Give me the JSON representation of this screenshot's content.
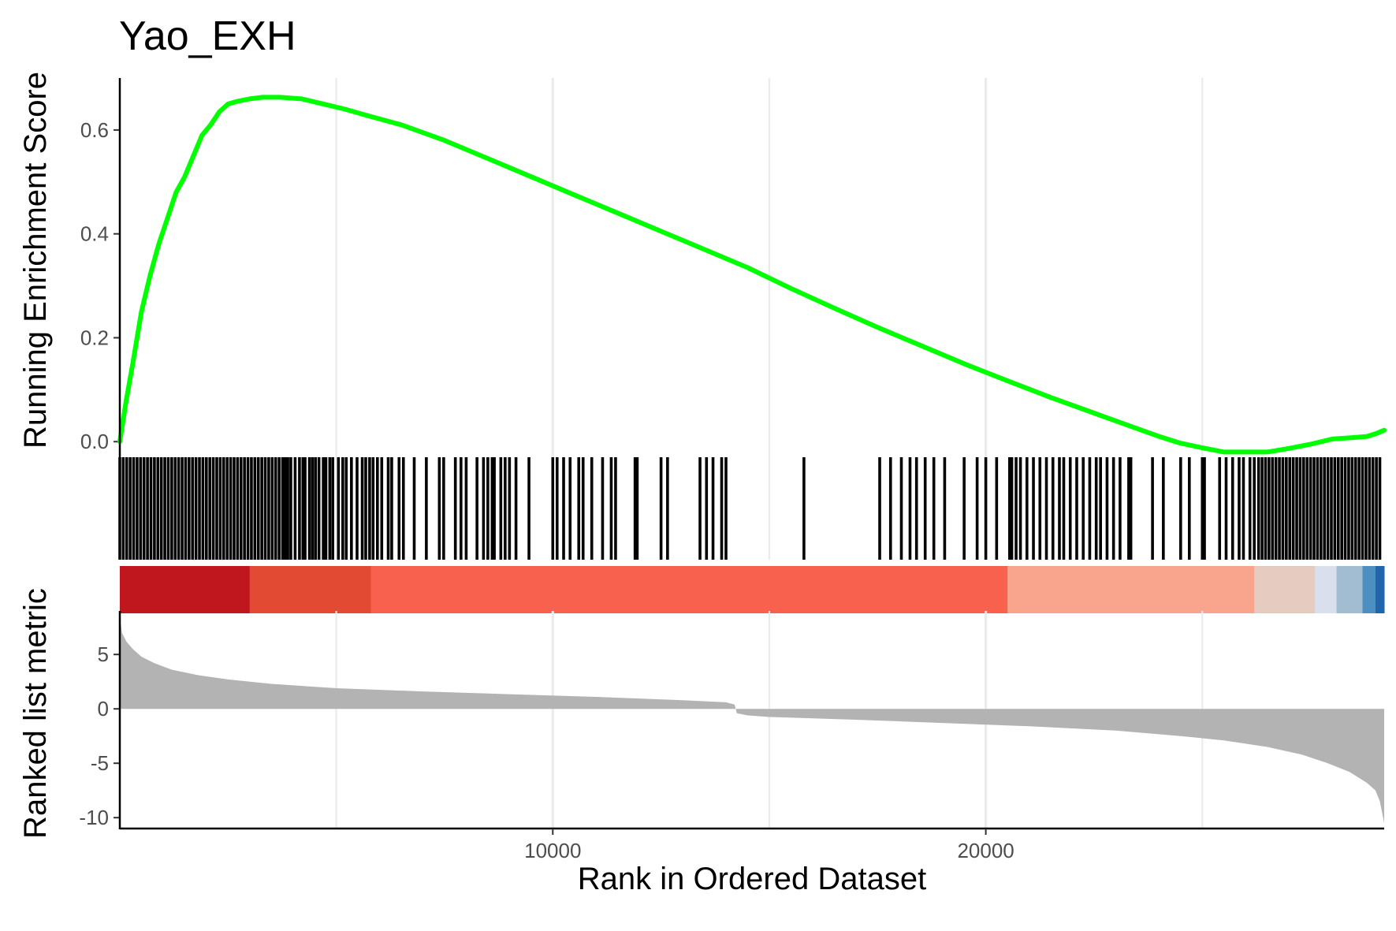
{
  "chart_data": {
    "type": "line",
    "title": "Yao_EXH",
    "xlabel": "Rank in Ordered Dataset",
    "x_ticks": [
      10000,
      20000
    ],
    "xlim": [
      1,
      29200
    ],
    "grid": "vertical major and minor gridlines",
    "panels": [
      {
        "name": "running_enrichment",
        "ylabel": "Running Enrichment Score",
        "ylim": [
          -0.03,
          0.7
        ],
        "y_ticks": [
          "0.0",
          "0.2",
          "0.4",
          "0.6"
        ],
        "y_tick_values": [
          0.0,
          0.2,
          0.4,
          0.6
        ],
        "line_color": "#00ff00",
        "series": [
          {
            "x": [
              1,
              150,
              300,
              500,
              700,
              900,
              1100,
              1300,
              1500,
              1700,
              1900,
              2100,
              2300,
              2500,
              2700,
              3000,
              3300,
              3700,
              4200,
              4700,
              5200,
              5700,
              6500,
              7500,
              8500,
              9500,
              10500,
              11500,
              12500,
              13500,
              14500,
              15500,
              16500,
              17500,
              18500,
              19500,
              20500,
              21500,
              22500,
              23500,
              24000,
              24500,
              25000,
              25500,
              26000,
              26500,
              27000,
              27500,
              28000,
              28500,
              28800,
              29000,
              29200
            ],
            "y": [
              0.0,
              0.08,
              0.15,
              0.25,
              0.32,
              0.38,
              0.43,
              0.48,
              0.51,
              0.55,
              0.59,
              0.61,
              0.635,
              0.65,
              0.655,
              0.66,
              0.663,
              0.663,
              0.66,
              0.65,
              0.64,
              0.628,
              0.61,
              0.58,
              0.545,
              0.51,
              0.475,
              0.44,
              0.405,
              0.37,
              0.335,
              0.295,
              0.257,
              0.22,
              0.185,
              0.15,
              0.117,
              0.085,
              0.055,
              0.025,
              0.01,
              -0.003,
              -0.012,
              -0.02,
              -0.02,
              -0.02,
              -0.013,
              -0.005,
              0.005,
              0.008,
              0.01,
              0.015,
              0.022
            ]
          }
        ]
      },
      {
        "name": "gene_hits",
        "hit_color": "#000000",
        "hits": [
          1,
          80,
          160,
          240,
          320,
          400,
          480,
          560,
          640,
          720,
          800,
          880,
          960,
          1040,
          1120,
          1200,
          1280,
          1360,
          1440,
          1520,
          1600,
          1680,
          1760,
          1840,
          1920,
          2000,
          2080,
          2160,
          2240,
          2320,
          2400,
          2480,
          2560,
          2640,
          2720,
          2800,
          2880,
          2960,
          3040,
          3120,
          3200,
          3280,
          3360,
          3440,
          3520,
          3600,
          3680,
          3760,
          3820,
          3880,
          3950,
          4050,
          4150,
          4230,
          4280,
          4380,
          4450,
          4520,
          4600,
          4700,
          4760,
          4850,
          4920,
          5050,
          5150,
          5230,
          5350,
          5480,
          5600,
          5680,
          5770,
          5850,
          5950,
          6050,
          6200,
          6280,
          6450,
          6550,
          6800,
          7080,
          7380,
          7480,
          7750,
          7880,
          8000,
          8250,
          8400,
          8500,
          8600,
          8650,
          8800,
          8900,
          9000,
          9150,
          9450,
          10000,
          10100,
          10250,
          10400,
          10600,
          10700,
          10900,
          11150,
          11350,
          11450,
          11900,
          11950,
          12500,
          12650,
          13400,
          13550,
          13700,
          13900,
          14000,
          15800,
          17550,
          17800,
          18050,
          18250,
          18400,
          18600,
          18800,
          19050,
          19500,
          19800,
          20000,
          20250,
          20550,
          20600,
          20700,
          20800,
          20950,
          21100,
          21250,
          21400,
          21550,
          21700,
          21800,
          21950,
          22100,
          22250,
          22400,
          22550,
          22650,
          22800,
          22950,
          23100,
          23300,
          23350,
          23850,
          24100,
          24500,
          24700,
          25000,
          25050,
          25400,
          25550,
          25700,
          25850,
          25950,
          26100,
          26200,
          26300,
          26380,
          26460,
          26540,
          26620,
          26700,
          26780,
          26860,
          26940,
          27020,
          27100,
          27180,
          27260,
          27340,
          27420,
          27500,
          27580,
          27660,
          27740,
          27820,
          27900,
          27980,
          28060,
          28140,
          28220,
          28300,
          28380,
          28460,
          28540,
          28620,
          28700,
          28780,
          28860,
          28940,
          29020,
          29100
        ]
      },
      {
        "name": "color_bar",
        "segments": [
          {
            "from": 1,
            "to": 3000,
            "color": "#c0171f"
          },
          {
            "from": 3000,
            "to": 5800,
            "color": "#e24a33"
          },
          {
            "from": 5800,
            "to": 20500,
            "color": "#f7614d"
          },
          {
            "from": 20500,
            "to": 26200,
            "color": "#f9a48c"
          },
          {
            "from": 26200,
            "to": 27600,
            "color": "#e6cbc0"
          },
          {
            "from": 27600,
            "to": 28100,
            "color": "#dadfee"
          },
          {
            "from": 28100,
            "to": 28700,
            "color": "#a2bcd2"
          },
          {
            "from": 28700,
            "to": 29000,
            "color": "#4e8fc2"
          },
          {
            "from": 29000,
            "to": 29200,
            "color": "#2166ac"
          }
        ]
      },
      {
        "name": "ranked_metric",
        "ylabel": "Ranked list metric",
        "ylim": [
          -11,
          9
        ],
        "y_ticks": [
          "5",
          "0",
          "-5",
          "-10"
        ],
        "y_tick_values": [
          5,
          0,
          -5,
          -10
        ],
        "fill_color": "#b3b3b3",
        "series": [
          {
            "x": [
              1,
              50,
              150,
              300,
              500,
              800,
              1200,
              1800,
              2500,
              3500,
              5000,
              7000,
              9000,
              11000,
              13000,
              14000,
              14200,
              14250,
              14500,
              15000,
              17000,
              19000,
              21000,
              23000,
              24500,
              25500,
              26500,
              27300,
              27900,
              28400,
              28800,
              29000,
              29100,
              29150,
              29200
            ],
            "y": [
              8.5,
              7.0,
              6.2,
              5.5,
              4.8,
              4.2,
              3.6,
              3.1,
              2.7,
              2.3,
              1.9,
              1.6,
              1.35,
              1.1,
              0.8,
              0.6,
              0.4,
              -0.4,
              -0.6,
              -0.75,
              -1.0,
              -1.3,
              -1.6,
              -2.0,
              -2.5,
              -2.9,
              -3.5,
              -4.2,
              -5.0,
              -5.8,
              -6.8,
              -7.5,
              -8.5,
              -9.5,
              -10.5
            ]
          }
        ]
      }
    ]
  }
}
